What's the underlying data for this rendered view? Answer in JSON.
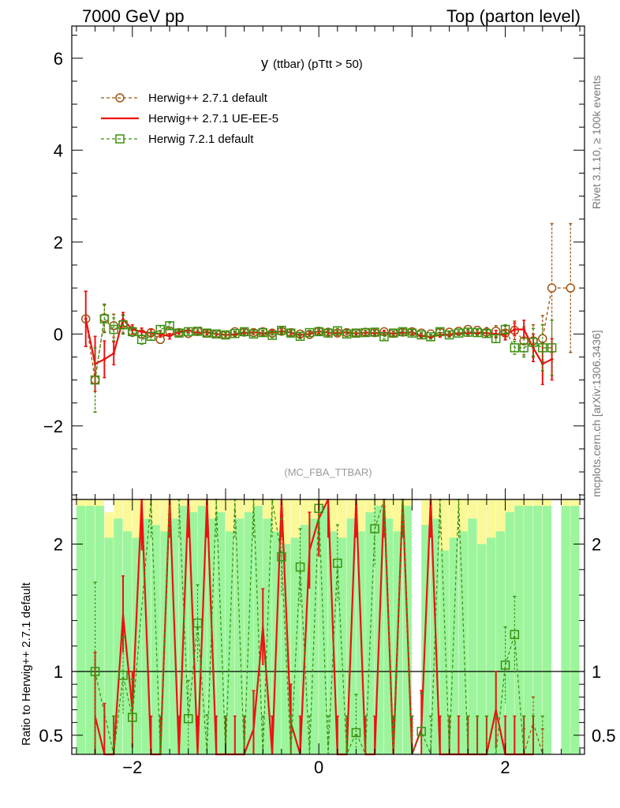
{
  "header": {
    "left": "7000 GeV pp",
    "right": "Top (parton level)"
  },
  "side": {
    "rivet": "Rivet 3.1.10, ≥ 100k events",
    "mcplots": "mcplots.cern.ch [arXiv:1306.3436]"
  },
  "colors": {
    "series1": "#a0520e",
    "series2": "#ee1111",
    "series3": "#3b8f0f",
    "band_green": "#9cf59c",
    "band_yellow": "#fbf898"
  },
  "chart_data": [
    {
      "type": "line",
      "title": "y (ttbar) (pTtt > 50)",
      "title_main": "y",
      "title_sub": "(ttbar) (pTtt > 50)",
      "watermark": "(MC_FBA_TTBAR)",
      "xlabel": "",
      "ylabel": "",
      "xlim": [
        -2.65,
        2.85
      ],
      "ylim": [
        -3.6,
        6.7
      ],
      "x_ticks": [
        -2,
        0,
        2
      ],
      "y_ticks": [
        -2,
        0,
        2,
        4,
        6
      ],
      "legend_position": "top-left",
      "series": [
        {
          "name": "Herwig++ 2.7.1 default",
          "style": "dashed-circle",
          "x": [
            -2.5,
            -2.4,
            -2.3,
            -2.2,
            -2.1,
            -2.0,
            -1.9,
            -1.8,
            -1.7,
            -1.6,
            -1.5,
            -1.4,
            -1.3,
            -1.2,
            -1.1,
            -1.0,
            -0.9,
            -0.8,
            -0.7,
            -0.6,
            -0.5,
            -0.4,
            -0.3,
            -0.2,
            -0.1,
            0.0,
            0.1,
            0.2,
            0.3,
            0.4,
            0.5,
            0.6,
            0.7,
            0.8,
            0.9,
            1.0,
            1.1,
            1.2,
            1.3,
            1.4,
            1.5,
            1.6,
            1.7,
            1.8,
            1.9,
            2.0,
            2.1,
            2.2,
            2.3,
            2.4,
            2.5,
            2.7
          ],
          "y": [
            0.33,
            -1.0,
            0.35,
            0.18,
            0.22,
            0.05,
            0.0,
            0.03,
            -0.12,
            0.06,
            0.03,
            0.01,
            0.06,
            0.02,
            0.0,
            -0.02,
            0.05,
            0.04,
            0.03,
            0.05,
            0.02,
            0.06,
            0.03,
            0.0,
            -0.01,
            0.06,
            0.04,
            0.02,
            0.03,
            0.02,
            0.04,
            0.03,
            0.05,
            0.02,
            0.04,
            0.05,
            0.02,
            0.0,
            0.04,
            0.04,
            0.06,
            0.1,
            0.08,
            0.04,
            0.06,
            0.02,
            0.08,
            -0.15,
            -0.15,
            -0.1,
            1.0,
            1.0
          ],
          "err": [
            0.6,
            0.7,
            0.3,
            0.25,
            0.2,
            0.1,
            0.08,
            0.08,
            0.08,
            0.06,
            0.05,
            0.05,
            0.05,
            0.05,
            0.05,
            0.05,
            0.05,
            0.05,
            0.05,
            0.05,
            0.05,
            0.05,
            0.05,
            0.05,
            0.05,
            0.05,
            0.05,
            0.05,
            0.05,
            0.05,
            0.05,
            0.05,
            0.05,
            0.05,
            0.05,
            0.05,
            0.05,
            0.05,
            0.05,
            0.06,
            0.06,
            0.07,
            0.08,
            0.1,
            0.12,
            0.15,
            0.2,
            0.3,
            0.35,
            0.5,
            1.4,
            1.4
          ]
        },
        {
          "name": "Herwig++ 2.7.1 UE-EE-5",
          "style": "solid",
          "x": [
            -2.5,
            -2.4,
            -2.3,
            -2.2,
            -2.1,
            -2.0,
            -1.9,
            -1.8,
            -1.7,
            -1.6,
            -1.5,
            -1.4,
            -1.3,
            -1.2,
            -1.1,
            -1.0,
            -0.9,
            -0.8,
            -0.7,
            -0.6,
            -0.5,
            -0.4,
            -0.3,
            -0.2,
            -0.1,
            0.0,
            0.1,
            0.2,
            0.3,
            0.4,
            0.5,
            0.6,
            0.7,
            0.8,
            0.9,
            1.0,
            1.1,
            1.2,
            1.3,
            1.4,
            1.5,
            1.6,
            1.7,
            1.8,
            1.9,
            2.0,
            2.1,
            2.2,
            2.3,
            2.4,
            2.5
          ],
          "y": [
            0.33,
            -0.65,
            -0.55,
            -0.42,
            0.32,
            0.1,
            0.05,
            0.02,
            0.0,
            -0.05,
            0.05,
            0.08,
            0.02,
            0.04,
            0.0,
            -0.02,
            -0.01,
            0.02,
            0.04,
            0.02,
            0.03,
            0.06,
            0.03,
            -0.02,
            0.0,
            0.06,
            0.03,
            0.02,
            0.04,
            0.01,
            0.03,
            0.02,
            0.03,
            0.01,
            0.02,
            0.04,
            -0.04,
            -0.06,
            -0.02,
            -0.01,
            0.02,
            0.01,
            0.03,
            0.02,
            0.0,
            -0.02,
            0.1,
            0.1,
            -0.3,
            -0.65,
            -0.55
          ],
          "err": [
            0.6,
            0.6,
            0.4,
            0.25,
            0.15,
            0.1,
            0.08,
            0.08,
            0.07,
            0.06,
            0.05,
            0.05,
            0.05,
            0.05,
            0.05,
            0.05,
            0.05,
            0.05,
            0.05,
            0.05,
            0.05,
            0.05,
            0.05,
            0.05,
            0.05,
            0.05,
            0.05,
            0.05,
            0.05,
            0.05,
            0.05,
            0.05,
            0.05,
            0.05,
            0.05,
            0.05,
            0.05,
            0.05,
            0.05,
            0.05,
            0.05,
            0.06,
            0.06,
            0.07,
            0.08,
            0.1,
            0.14,
            0.2,
            0.3,
            0.45,
            0.45
          ]
        },
        {
          "name": "Herwig 7.2.1 default",
          "style": "dashed-square",
          "x": [
            -2.4,
            -2.3,
            -2.2,
            -2.1,
            -2.0,
            -1.9,
            -1.8,
            -1.7,
            -1.6,
            -1.5,
            -1.4,
            -1.3,
            -1.2,
            -1.1,
            -1.0,
            -0.9,
            -0.8,
            -0.7,
            -0.6,
            -0.5,
            -0.4,
            -0.3,
            -0.2,
            -0.1,
            0.0,
            0.1,
            0.2,
            0.3,
            0.4,
            0.5,
            0.6,
            0.7,
            0.8,
            0.9,
            1.0,
            1.1,
            1.2,
            1.3,
            1.4,
            1.5,
            1.6,
            1.7,
            1.8,
            1.9,
            2.0,
            2.1,
            2.2,
            2.3,
            2.4,
            2.5
          ],
          "y": [
            -1.0,
            0.33,
            0.1,
            0.2,
            0.05,
            -0.12,
            -0.05,
            0.1,
            0.18,
            0.02,
            0.05,
            0.06,
            0.02,
            0.0,
            -0.02,
            0.01,
            0.05,
            0.0,
            0.03,
            -0.03,
            0.08,
            0.02,
            -0.05,
            0.03,
            0.05,
            0.02,
            0.07,
            0.0,
            0.02,
            0.03,
            0.04,
            -0.06,
            0.02,
            0.05,
            0.02,
            -0.02,
            -0.06,
            0.05,
            -0.02,
            0.02,
            0.04,
            0.03,
            0.01,
            -0.1,
            0.1,
            -0.3,
            -0.3,
            -0.18,
            -0.3,
            -0.3
          ],
          "err": [
            0.7,
            0.3,
            0.25,
            0.2,
            0.1,
            0.1,
            0.08,
            0.08,
            0.07,
            0.06,
            0.05,
            0.05,
            0.05,
            0.05,
            0.05,
            0.05,
            0.05,
            0.05,
            0.05,
            0.05,
            0.05,
            0.05,
            0.05,
            0.05,
            0.05,
            0.05,
            0.05,
            0.05,
            0.05,
            0.05,
            0.05,
            0.05,
            0.05,
            0.05,
            0.05,
            0.05,
            0.05,
            0.05,
            0.05,
            0.05,
            0.06,
            0.06,
            0.07,
            0.08,
            0.1,
            0.14,
            0.2,
            0.3,
            0.5,
            0.6
          ]
        }
      ]
    },
    {
      "type": "line",
      "title": "",
      "xlabel": "",
      "ylabel": "Ratio to Herwig++ 2.7.1 default",
      "xlim": [
        -2.65,
        2.85
      ],
      "ylim": [
        0.35,
        2.35
      ],
      "x_ticks": [
        -2,
        0,
        2
      ],
      "x_tick_labels": [
        "−2",
        "0",
        "2"
      ],
      "y_ticks": [
        0.5,
        1,
        2
      ],
      "y_tick_labels": [
        "0.5",
        "1",
        "2"
      ],
      "reference_line": 1,
      "bands": {
        "x": [
          -2.55,
          -2.45,
          -2.35,
          -2.25,
          -2.15,
          -2.05,
          -1.95,
          -1.85,
          -1.75,
          -1.65,
          -1.55,
          -1.45,
          -1.35,
          -1.25,
          -1.15,
          -1.05,
          -0.95,
          -0.85,
          -0.75,
          -0.65,
          -0.55,
          -0.45,
          -0.35,
          -0.25,
          -0.15,
          -0.05,
          0.05,
          0.15,
          0.25,
          0.35,
          0.45,
          0.55,
          0.65,
          0.75,
          0.85,
          0.95,
          1.05,
          1.15,
          1.25,
          1.35,
          1.45,
          1.55,
          1.65,
          1.75,
          1.85,
          1.95,
          2.05,
          2.15,
          2.25,
          2.35,
          2.45,
          2.55,
          2.65,
          2.75
        ],
        "green_top": [
          2.3,
          2.3,
          2.3,
          2.05,
          2.2,
          2.1,
          2.05,
          2.2,
          2.15,
          2.1,
          2.2,
          2.3,
          2.25,
          2.3,
          2.2,
          2.25,
          2.1,
          2.2,
          2.25,
          2.3,
          2.2,
          2.1,
          2.0,
          2.05,
          2.15,
          2.2,
          2.3,
          2.1,
          2.05,
          2.2,
          2.1,
          2.25,
          2.3,
          2.2,
          2.1,
          2.3,
          0.35,
          2.15,
          2.2,
          1.95,
          2.05,
          2.1,
          2.2,
          2.0,
          2.05,
          2.1,
          2.25,
          2.3,
          2.3,
          2.3,
          2.3,
          0.35,
          2.3,
          2.3
        ],
        "yellow_top": [
          2.35,
          2.35,
          2.35,
          2.25,
          2.35,
          2.35,
          2.35,
          2.35,
          2.35,
          2.35,
          2.35,
          2.35,
          2.35,
          2.35,
          2.35,
          2.35,
          2.35,
          2.35,
          2.35,
          2.35,
          2.35,
          2.35,
          2.35,
          2.35,
          2.35,
          2.35,
          2.35,
          2.35,
          2.35,
          2.35,
          2.35,
          2.35,
          2.35,
          2.35,
          2.35,
          2.35,
          0.35,
          2.35,
          2.35,
          2.35,
          2.35,
          2.35,
          2.35,
          2.35,
          2.35,
          2.35,
          2.35,
          2.35,
          2.35,
          2.35,
          2.35,
          0.35,
          2.35,
          2.35
        ],
        "bottom": [
          0.35,
          0.35,
          0.35,
          0.35,
          0.35,
          0.35,
          0.35,
          0.35,
          0.35,
          0.35,
          0.35,
          0.35,
          0.35,
          0.35,
          0.35,
          0.35,
          0.35,
          0.35,
          0.35,
          0.35,
          0.35,
          0.35,
          0.35,
          0.35,
          0.35,
          0.35,
          0.35,
          0.35,
          0.35,
          0.35,
          0.35,
          0.35,
          0.35,
          0.35,
          0.35,
          0.35,
          0.35,
          0.35,
          0.35,
          0.35,
          0.35,
          0.35,
          0.35,
          0.35,
          0.35,
          0.35,
          0.35,
          0.35,
          0.35,
          0.35,
          0.35,
          0.35,
          0.35,
          0.35
        ]
      },
      "series": [
        {
          "name": "Herwig++ 2.7.1 UE-EE-5",
          "style": "solid",
          "x": [
            -2.4,
            -2.3,
            -2.2,
            -2.1,
            -2.0,
            -1.9,
            -1.8,
            -1.7,
            -1.6,
            -1.5,
            -1.4,
            -1.3,
            -1.2,
            -1.1,
            -1.0,
            -0.9,
            -0.8,
            -0.7,
            -0.6,
            -0.5,
            -0.4,
            -0.3,
            -0.2,
            -0.1,
            0.0,
            0.1,
            0.2,
            0.3,
            0.4,
            0.5,
            0.6,
            0.7,
            0.8,
            0.9,
            1.0,
            1.1,
            1.2,
            1.3,
            1.4,
            1.5,
            1.6,
            1.7,
            1.8,
            1.9,
            2.0,
            2.1,
            2.2,
            2.3
          ],
          "y": [
            0.65,
            0.35,
            0.35,
            1.45,
            0.7,
            2.35,
            0.35,
            0.35,
            2.35,
            0.35,
            2.35,
            0.35,
            2.35,
            0.35,
            0.35,
            0.35,
            0.35,
            0.55,
            1.35,
            0.35,
            2.35,
            0.6,
            0.35,
            1.95,
            2.2,
            2.35,
            0.35,
            0.35,
            2.35,
            0.35,
            0.35,
            2.35,
            0.35,
            2.35,
            0.35,
            0.55,
            2.35,
            0.35,
            0.35,
            0.35,
            0.35,
            0.35,
            0.35,
            0.7,
            0.35,
            0.35,
            0.35,
            0.35
          ],
          "err": [
            0.5,
            0.4,
            0.3,
            0.3,
            0.3,
            0.4,
            0.3,
            0.3,
            0.3,
            0.3,
            0.3,
            0.3,
            0.3,
            0.3,
            0.3,
            0.3,
            0.3,
            0.3,
            0.3,
            0.3,
            0.3,
            0.3,
            0.3,
            0.3,
            0.3,
            0.3,
            0.3,
            0.3,
            0.3,
            0.3,
            0.3,
            0.3,
            0.3,
            0.3,
            0.3,
            0.3,
            0.3,
            0.3,
            0.3,
            0.3,
            0.3,
            0.3,
            0.3,
            0.3,
            0.3,
            0.3,
            0.3,
            0.3
          ]
        },
        {
          "name": "Herwig 7.2.1 default",
          "style": "dashed-square",
          "x": [
            -2.4,
            -2.2,
            -2.1,
            -2.0,
            -1.8,
            -1.7,
            -1.6,
            -1.5,
            -1.4,
            -1.3,
            -1.2,
            -1.1,
            -1.0,
            -0.9,
            -0.8,
            -0.7,
            -0.6,
            -0.5,
            -0.4,
            -0.3,
            -0.2,
            -0.1,
            0.0,
            0.1,
            0.2,
            0.3,
            0.4,
            0.5,
            0.6,
            0.7,
            0.8,
            0.9,
            1.0,
            1.1,
            1.2,
            1.3,
            1.4,
            1.5,
            1.6,
            1.7,
            1.8,
            1.9,
            2.0,
            2.1,
            2.2,
            2.3,
            2.4
          ],
          "y": [
            1.0,
            0.35,
            0.97,
            0.64,
            2.35,
            0.35,
            2.35,
            2.35,
            0.63,
            1.38,
            0.36,
            2.35,
            0.35,
            2.35,
            0.35,
            2.35,
            0.35,
            2.35,
            1.9,
            0.35,
            1.82,
            0.35,
            2.28,
            0.35,
            1.85,
            0.35,
            0.52,
            0.35,
            2.12,
            2.35,
            0.35,
            2.35,
            0.35,
            0.53,
            0.35,
            2.35,
            0.35,
            2.35,
            0.35,
            0.35,
            0.35,
            0.35,
            1.05,
            1.29,
            0.35,
            0.35,
            0.35
          ],
          "err": [
            0.7,
            0.3,
            0.3,
            0.3,
            0.3,
            0.3,
            0.3,
            0.3,
            0.3,
            0.3,
            0.3,
            0.3,
            0.3,
            0.3,
            0.3,
            0.3,
            0.3,
            0.3,
            0.3,
            0.3,
            0.3,
            0.3,
            0.3,
            0.3,
            0.3,
            0.3,
            0.3,
            0.3,
            0.3,
            0.3,
            0.3,
            0.3,
            0.3,
            0.3,
            0.3,
            0.3,
            0.3,
            0.3,
            0.3,
            0.3,
            0.3,
            0.3,
            0.3,
            0.3,
            0.3,
            0.3,
            0.3
          ]
        },
        {
          "name": "Herwig++ 2.7.1 default",
          "style": "dashed",
          "x": [
            2.2,
            2.3,
            2.4
          ],
          "y": [
            0.35,
            0.6,
            0.35
          ],
          "err": [
            0.2,
            0.2,
            0.2
          ]
        }
      ]
    }
  ]
}
